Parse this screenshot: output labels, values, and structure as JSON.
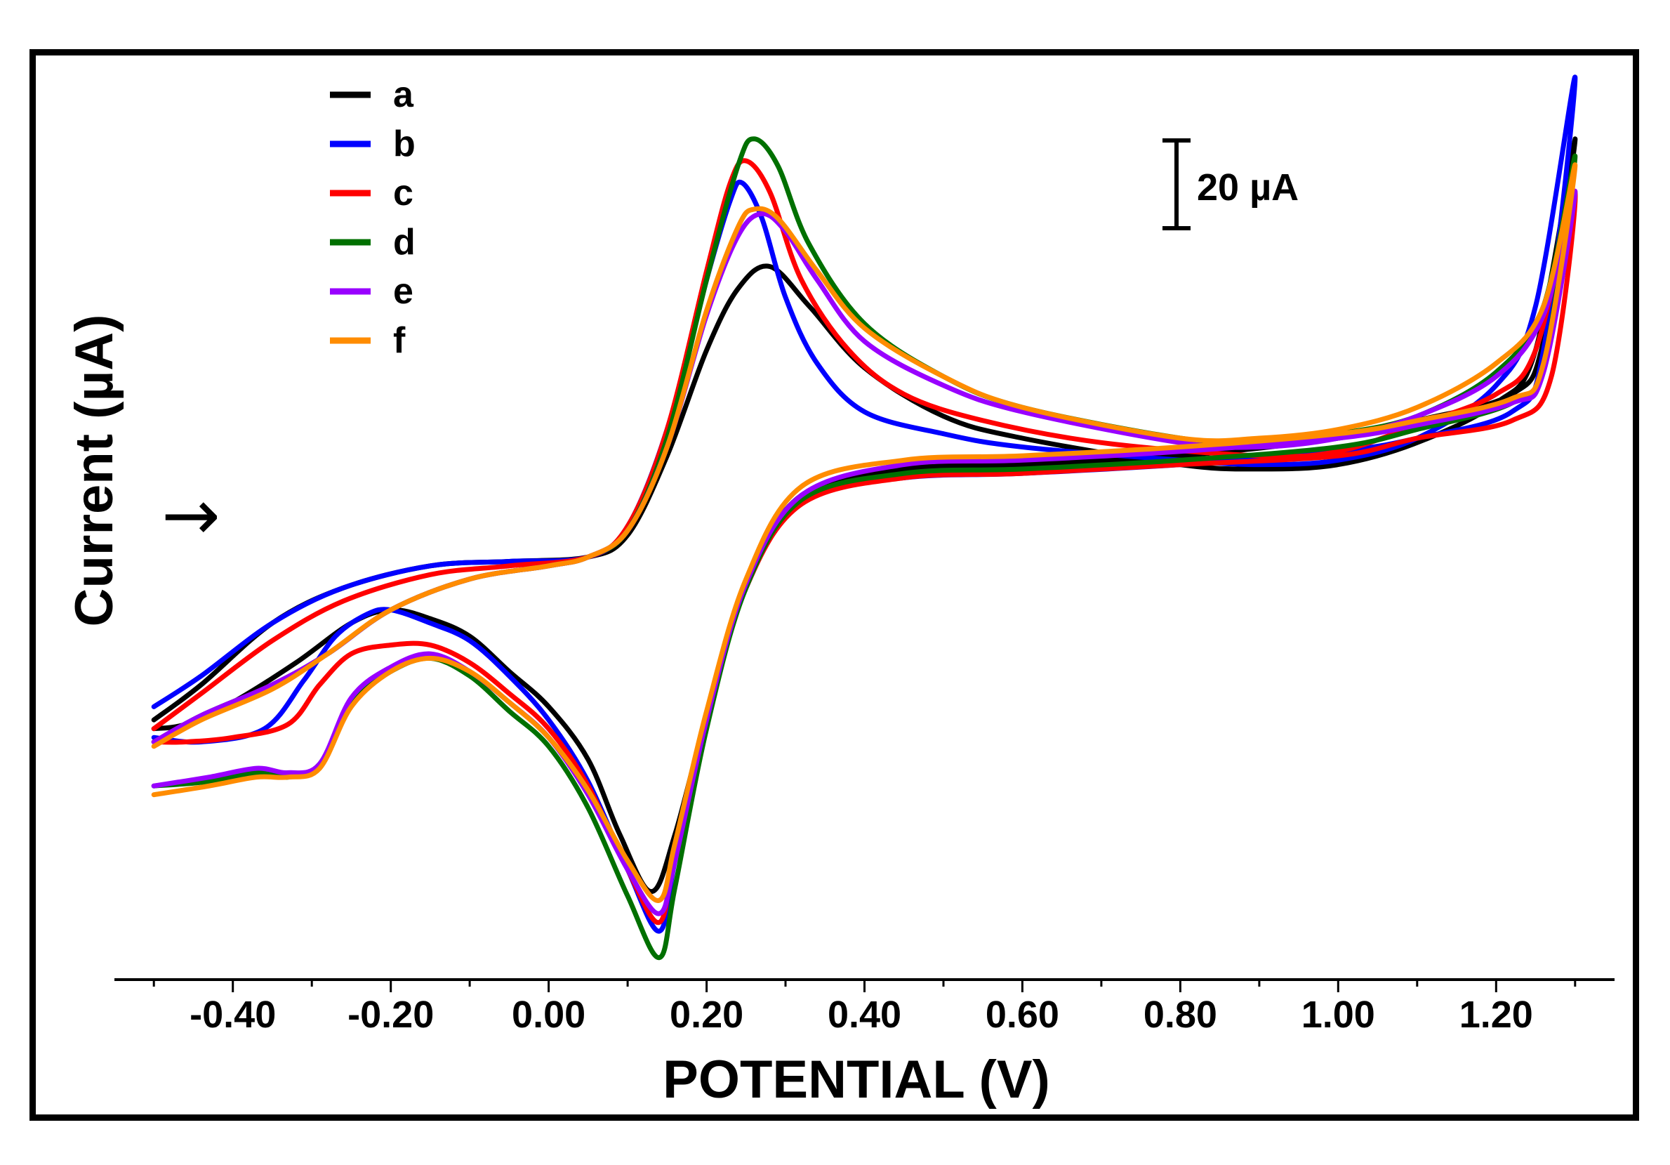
{
  "chart_data": {
    "type": "line",
    "title": "",
    "xlabel": "POTENTIAL (V)",
    "ylabel": "Current (µA)",
    "xlim": [
      -0.55,
      1.35
    ],
    "ylim": [
      -95,
      110
    ],
    "x_ticks": [
      -0.4,
      -0.2,
      0.0,
      0.2,
      0.4,
      0.6,
      0.8,
      1.0,
      1.2
    ],
    "x_tick_labels": [
      "-0.40",
      "-0.20",
      "0.00",
      "0.20",
      "0.40",
      "0.60",
      "0.80",
      "1.00",
      "1.20"
    ],
    "scale_bar": {
      "label": "20 µA",
      "value": 20
    },
    "scan_direction": "→",
    "legend_position": "top-left",
    "series": [
      {
        "name": "a",
        "color": "#000000",
        "ox": 0.28,
        "oy": 67,
        "rx": 0.13,
        "ry": -75,
        "ex0": -2,
        "ee": 0.1,
        "ed": 0,
        "sx": -0.205,
        "sy": 12,
        "fwd": [
          [
            -0.5,
            -36
          ],
          [
            -0.44,
            -28
          ],
          [
            -0.35,
            -14
          ],
          [
            -0.26,
            -6
          ],
          [
            -0.15,
            -1
          ],
          [
            -0.05,
            0
          ],
          [
            0.05,
            1
          ],
          [
            0.1,
            6
          ],
          [
            0.15,
            24
          ],
          [
            0.2,
            48
          ],
          [
            0.24,
            62
          ],
          [
            0.28,
            67
          ],
          [
            0.33,
            58
          ],
          [
            0.4,
            44
          ],
          [
            0.5,
            33
          ],
          [
            0.6,
            28
          ],
          [
            0.8,
            22
          ],
          [
            0.9,
            21
          ],
          [
            1.0,
            22
          ],
          [
            1.1,
            27
          ],
          [
            1.2,
            36
          ],
          [
            1.25,
            48
          ],
          [
            1.3,
            96
          ]
        ],
        "rev": [
          [
            1.3,
            75
          ],
          [
            1.26,
            50
          ],
          [
            1.22,
            38
          ],
          [
            1.1,
            32
          ],
          [
            1.0,
            28
          ],
          [
            0.8,
            24
          ],
          [
            0.6,
            22
          ],
          [
            0.45,
            21
          ],
          [
            0.32,
            15
          ],
          [
            0.25,
            -5
          ],
          [
            0.2,
            -35
          ],
          [
            0.16,
            -62
          ],
          [
            0.13,
            -75
          ],
          [
            0.09,
            -62
          ],
          [
            0.05,
            -45
          ],
          [
            0.0,
            -33
          ],
          [
            -0.05,
            -25
          ],
          [
            -0.1,
            -17
          ],
          [
            -0.15,
            -13
          ],
          [
            -0.2,
            -11
          ],
          [
            -0.25,
            -14
          ],
          [
            -0.32,
            -23
          ],
          [
            -0.4,
            -32
          ],
          [
            -0.46,
            -37
          ],
          [
            -0.5,
            -38
          ]
        ]
      },
      {
        "name": "b",
        "color": "#0000ff",
        "ox": 0.245,
        "oy": 86,
        "rx": 0.14,
        "ry": -84,
        "ex0": -2,
        "ee": 0.1,
        "ed": 0,
        "sx": -0.225,
        "sy": 12,
        "fwd": [
          [
            -0.5,
            -33
          ],
          [
            -0.44,
            -26
          ],
          [
            -0.35,
            -14
          ],
          [
            -0.26,
            -6
          ],
          [
            -0.15,
            -1
          ],
          [
            -0.05,
            0
          ],
          [
            0.05,
            1
          ],
          [
            0.1,
            8
          ],
          [
            0.15,
            30
          ],
          [
            0.2,
            64
          ],
          [
            0.23,
            82
          ],
          [
            0.245,
            86
          ],
          [
            0.27,
            78
          ],
          [
            0.3,
            60
          ],
          [
            0.34,
            45
          ],
          [
            0.4,
            34
          ],
          [
            0.5,
            29
          ],
          [
            0.6,
            26
          ],
          [
            0.8,
            23
          ],
          [
            0.9,
            22
          ],
          [
            1.0,
            23
          ],
          [
            1.1,
            28
          ],
          [
            1.2,
            40
          ],
          [
            1.25,
            58
          ],
          [
            1.3,
            110
          ]
        ],
        "rev": [
          [
            1.3,
            72
          ],
          [
            1.26,
            48
          ],
          [
            1.22,
            34
          ],
          [
            1.1,
            28
          ],
          [
            1.0,
            25
          ],
          [
            0.8,
            22
          ],
          [
            0.6,
            20
          ],
          [
            0.45,
            19
          ],
          [
            0.32,
            14
          ],
          [
            0.25,
            -6
          ],
          [
            0.2,
            -36
          ],
          [
            0.16,
            -68
          ],
          [
            0.14,
            -84
          ],
          [
            0.1,
            -70
          ],
          [
            0.05,
            -50
          ],
          [
            0.0,
            -36
          ],
          [
            -0.05,
            -26
          ],
          [
            -0.1,
            -18
          ],
          [
            -0.15,
            -14
          ],
          [
            -0.2,
            -11
          ],
          [
            -0.23,
            -12
          ],
          [
            -0.27,
            -17
          ],
          [
            -0.31,
            -27
          ],
          [
            -0.36,
            -38
          ],
          [
            -0.44,
            -41
          ],
          [
            -0.5,
            -40
          ]
        ]
      },
      {
        "name": "c",
        "color": "#ff0000",
        "ox": 0.25,
        "oy": 91,
        "rx": 0.14,
        "ry": -82,
        "ex0": -2,
        "ee": 0.1,
        "ed": 0,
        "sx": -0.17,
        "sy": 12,
        "fwd": [
          [
            -0.5,
            -38
          ],
          [
            -0.44,
            -30
          ],
          [
            -0.35,
            -18
          ],
          [
            -0.26,
            -9
          ],
          [
            -0.15,
            -3
          ],
          [
            -0.05,
            -1
          ],
          [
            0.05,
            1
          ],
          [
            0.1,
            8
          ],
          [
            0.15,
            30
          ],
          [
            0.2,
            66
          ],
          [
            0.23,
            86
          ],
          [
            0.25,
            91
          ],
          [
            0.28,
            84
          ],
          [
            0.32,
            64
          ],
          [
            0.38,
            48
          ],
          [
            0.45,
            38
          ],
          [
            0.55,
            32
          ],
          [
            0.7,
            27
          ],
          [
            0.9,
            24
          ],
          [
            1.0,
            25
          ],
          [
            1.1,
            31
          ],
          [
            1.2,
            38
          ],
          [
            1.25,
            48
          ],
          [
            1.3,
            84
          ]
        ],
        "rev": [
          [
            1.3,
            62
          ],
          [
            1.27,
            42
          ],
          [
            1.22,
            32
          ],
          [
            1.1,
            28
          ],
          [
            1.0,
            24
          ],
          [
            0.8,
            22
          ],
          [
            0.6,
            20
          ],
          [
            0.45,
            19
          ],
          [
            0.32,
            13
          ],
          [
            0.25,
            -6
          ],
          [
            0.2,
            -36
          ],
          [
            0.16,
            -66
          ],
          [
            0.14,
            -82
          ],
          [
            0.1,
            -70
          ],
          [
            0.05,
            -51
          ],
          [
            0.0,
            -38
          ],
          [
            -0.05,
            -30
          ],
          [
            -0.1,
            -23
          ],
          [
            -0.15,
            -19
          ],
          [
            -0.2,
            -19
          ],
          [
            -0.25,
            -21
          ],
          [
            -0.29,
            -28
          ],
          [
            -0.33,
            -37
          ],
          [
            -0.4,
            -40
          ],
          [
            -0.46,
            -41
          ],
          [
            -0.5,
            -41
          ]
        ]
      },
      {
        "name": "d",
        "color": "#007000",
        "ox": 0.26,
        "oy": 96,
        "rx": 0.14,
        "ry": -90,
        "ex0": -2,
        "ee": 0.1,
        "ed": 0,
        "sx": -0.16,
        "sy": 12,
        "fwd": [
          [
            -0.5,
            -41
          ],
          [
            -0.44,
            -35
          ],
          [
            -0.35,
            -28
          ],
          [
            -0.28,
            -21
          ],
          [
            -0.2,
            -11
          ],
          [
            -0.1,
            -4
          ],
          [
            0.0,
            -1
          ],
          [
            0.05,
            1
          ],
          [
            0.1,
            7
          ],
          [
            0.15,
            28
          ],
          [
            0.2,
            64
          ],
          [
            0.24,
            90
          ],
          [
            0.26,
            96
          ],
          [
            0.29,
            90
          ],
          [
            0.33,
            72
          ],
          [
            0.4,
            54
          ],
          [
            0.5,
            42
          ],
          [
            0.6,
            35
          ],
          [
            0.8,
            28
          ],
          [
            0.9,
            27
          ],
          [
            1.0,
            29
          ],
          [
            1.1,
            33
          ],
          [
            1.2,
            43
          ],
          [
            1.26,
            58
          ],
          [
            1.3,
            92
          ]
        ],
        "rev": [
          [
            1.3,
            70
          ],
          [
            1.26,
            45
          ],
          [
            1.22,
            36
          ],
          [
            1.1,
            30
          ],
          [
            1.0,
            26
          ],
          [
            0.8,
            23
          ],
          [
            0.6,
            21
          ],
          [
            0.45,
            20
          ],
          [
            0.32,
            14
          ],
          [
            0.25,
            -6
          ],
          [
            0.2,
            -38
          ],
          [
            0.16,
            -74
          ],
          [
            0.14,
            -90
          ],
          [
            0.1,
            -76
          ],
          [
            0.05,
            -56
          ],
          [
            0.0,
            -42
          ],
          [
            -0.05,
            -34
          ],
          [
            -0.1,
            -26
          ],
          [
            -0.15,
            -22
          ],
          [
            -0.2,
            -25
          ],
          [
            -0.25,
            -32
          ],
          [
            -0.29,
            -46
          ],
          [
            -0.33,
            -49
          ],
          [
            -0.37,
            -48
          ],
          [
            -0.43,
            -50
          ],
          [
            -0.5,
            -51
          ]
        ]
      },
      {
        "name": "e",
        "color": "#9900ff",
        "ox": 0.27,
        "oy": 79,
        "rx": 0.14,
        "ry": -80,
        "ex0": -2,
        "ee": 0.1,
        "ed": 0,
        "sx": -0.16,
        "sy": 12,
        "fwd": [
          [
            -0.5,
            -41
          ],
          [
            -0.44,
            -35
          ],
          [
            -0.35,
            -28
          ],
          [
            -0.28,
            -21
          ],
          [
            -0.2,
            -11
          ],
          [
            -0.1,
            -4
          ],
          [
            0.0,
            -1
          ],
          [
            0.05,
            1
          ],
          [
            0.1,
            7
          ],
          [
            0.15,
            26
          ],
          [
            0.2,
            56
          ],
          [
            0.24,
            74
          ],
          [
            0.27,
            79
          ],
          [
            0.3,
            75
          ],
          [
            0.34,
            64
          ],
          [
            0.4,
            50
          ],
          [
            0.5,
            40
          ],
          [
            0.6,
            34
          ],
          [
            0.8,
            27
          ],
          [
            0.9,
            26
          ],
          [
            1.0,
            28
          ],
          [
            1.1,
            33
          ],
          [
            1.2,
            42
          ],
          [
            1.26,
            56
          ],
          [
            1.3,
            84
          ]
        ],
        "rev": [
          [
            1.3,
            66
          ],
          [
            1.26,
            43
          ],
          [
            1.22,
            36
          ],
          [
            1.1,
            31
          ],
          [
            1.0,
            28
          ],
          [
            0.8,
            25
          ],
          [
            0.6,
            23
          ],
          [
            0.45,
            22
          ],
          [
            0.32,
            15
          ],
          [
            0.25,
            -5
          ],
          [
            0.2,
            -36
          ],
          [
            0.16,
            -68
          ],
          [
            0.14,
            -80
          ],
          [
            0.1,
            -70
          ],
          [
            0.05,
            -53
          ],
          [
            0.0,
            -40
          ],
          [
            -0.05,
            -32
          ],
          [
            -0.1,
            -25
          ],
          [
            -0.15,
            -21
          ],
          [
            -0.2,
            -24
          ],
          [
            -0.25,
            -31
          ],
          [
            -0.29,
            -46
          ],
          [
            -0.33,
            -48
          ],
          [
            -0.37,
            -47
          ],
          [
            -0.43,
            -49
          ],
          [
            -0.5,
            -51
          ]
        ]
      },
      {
        "name": "f",
        "color": "#ff8c00",
        "ox": 0.26,
        "oy": 80,
        "rx": 0.14,
        "ry": -77,
        "ex0": -2,
        "ee": 0.1,
        "ed": 0,
        "sx": -0.15,
        "sy": 12,
        "fwd": [
          [
            -0.5,
            -42
          ],
          [
            -0.44,
            -36
          ],
          [
            -0.35,
            -29
          ],
          [
            -0.28,
            -21
          ],
          [
            -0.2,
            -11
          ],
          [
            -0.1,
            -4
          ],
          [
            0.0,
            -1
          ],
          [
            0.05,
            1
          ],
          [
            0.1,
            7
          ],
          [
            0.15,
            26
          ],
          [
            0.2,
            57
          ],
          [
            0.24,
            76
          ],
          [
            0.26,
            80
          ],
          [
            0.29,
            78
          ],
          [
            0.34,
            66
          ],
          [
            0.4,
            53
          ],
          [
            0.5,
            42
          ],
          [
            0.6,
            35
          ],
          [
            0.8,
            28
          ],
          [
            0.9,
            28
          ],
          [
            1.0,
            30
          ],
          [
            1.1,
            35
          ],
          [
            1.2,
            45
          ],
          [
            1.26,
            58
          ],
          [
            1.3,
            90
          ]
        ],
        "rev": [
          [
            1.3,
            68
          ],
          [
            1.26,
            45
          ],
          [
            1.22,
            37
          ],
          [
            1.1,
            32
          ],
          [
            1.0,
            29
          ],
          [
            0.8,
            26
          ],
          [
            0.6,
            24
          ],
          [
            0.45,
            23
          ],
          [
            0.32,
            17
          ],
          [
            0.25,
            -4
          ],
          [
            0.2,
            -34
          ],
          [
            0.16,
            -64
          ],
          [
            0.14,
            -77
          ],
          [
            0.1,
            -68
          ],
          [
            0.05,
            -52
          ],
          [
            0.0,
            -40
          ],
          [
            -0.05,
            -32
          ],
          [
            -0.1,
            -25
          ],
          [
            -0.15,
            -22
          ],
          [
            -0.2,
            -25
          ],
          [
            -0.25,
            -33
          ],
          [
            -0.29,
            -47
          ],
          [
            -0.33,
            -49
          ],
          [
            -0.37,
            -49
          ],
          [
            -0.43,
            -51
          ],
          [
            -0.5,
            -53
          ]
        ]
      }
    ]
  }
}
